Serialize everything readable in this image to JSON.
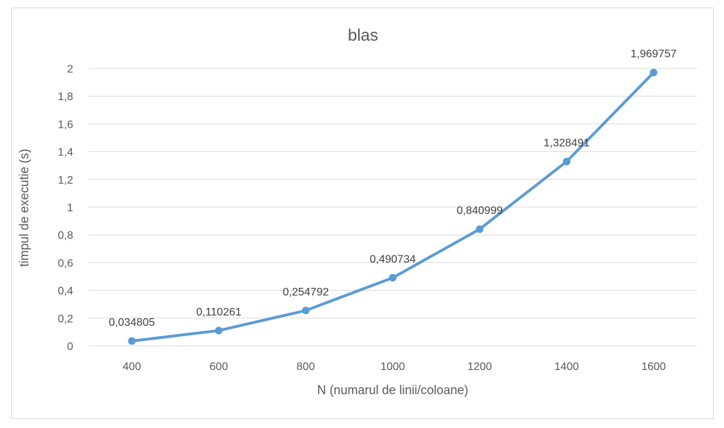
{
  "chart_data": {
    "type": "line",
    "title": "blas",
    "xlabel": "N (numarul de linii/coloane)",
    "ylabel": "timpul de executie (s)",
    "categories": [
      "400",
      "600",
      "800",
      "1000",
      "1200",
      "1400",
      "1600"
    ],
    "series": [
      {
        "name": "blas",
        "values": [
          0.034805,
          0.110261,
          0.254792,
          0.490734,
          0.840999,
          1.328491,
          1.969757
        ],
        "labels": [
          "0,034805",
          "0,110261",
          "0,254792",
          "0,490734",
          "0,840999",
          "1,328491",
          "1,969757"
        ],
        "color": "#5b9bd5"
      }
    ],
    "yticks": [
      "0",
      "0,2",
      "0,4",
      "0,6",
      "0,8",
      "1",
      "1,2",
      "1,4",
      "1,6",
      "1,8",
      "2"
    ],
    "ylim": [
      0,
      2
    ],
    "grid": true,
    "gridColor": "#d9d9d9"
  }
}
